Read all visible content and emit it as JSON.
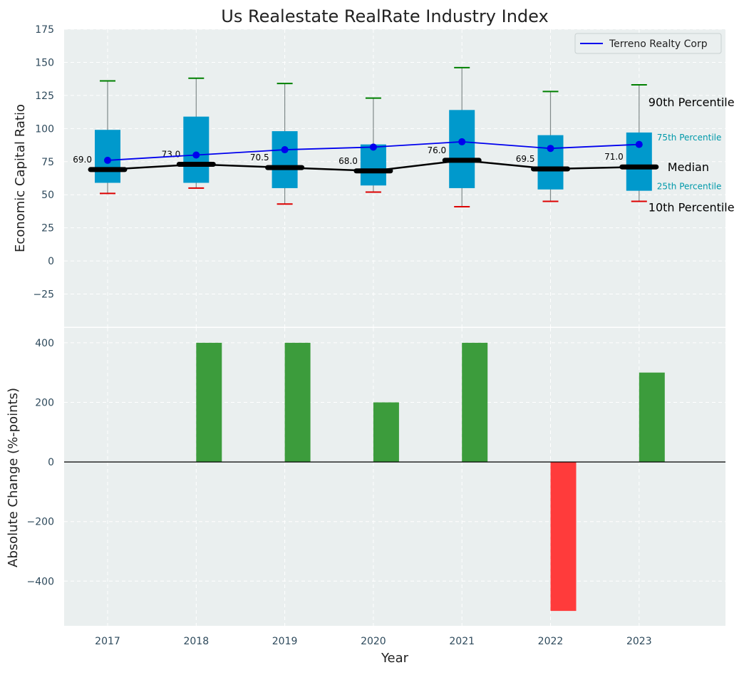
{
  "title": "Us Realestate RealRate Industry Index",
  "colors": {
    "plot_bg": "#EAEFEF",
    "grid": "#FFFFFF",
    "box": "#0099CC",
    "median_line": "#000000",
    "whisker": "#808A8A",
    "p90_cap": "#008000",
    "p10_cap": "#DD0000",
    "company_line": "#0000EE",
    "bar_pos": "#3C9C3C",
    "bar_neg": "#FF3B3B",
    "tick_text": "#2E4A5C",
    "label_text": "#222222",
    "annotation_teal": "#0099AA"
  },
  "chart_data": [
    {
      "type": "box",
      "title": "Us Realestate RealRate Industry Index",
      "xlabel": "",
      "ylabel": "Economic Capital Ratio",
      "ylim": [
        -50,
        175
      ],
      "yticks": [
        -25,
        0,
        25,
        50,
        75,
        100,
        125,
        150,
        175
      ],
      "grid": true,
      "categories": [
        "2017",
        "2018",
        "2019",
        "2020",
        "2021",
        "2022",
        "2023"
      ],
      "p10": [
        51,
        55,
        43,
        52,
        41,
        45,
        45
      ],
      "p25": [
        59,
        59,
        55,
        57,
        55,
        54,
        53
      ],
      "median": [
        69.0,
        73.0,
        70.5,
        68.0,
        76.0,
        69.5,
        71.0
      ],
      "median_labels": [
        "69.0",
        "73.0",
        "70.5",
        "68.0",
        "76.0",
        "69.5",
        "71.0"
      ],
      "p75": [
        99,
        109,
        98,
        88,
        114,
        95,
        97
      ],
      "p90": [
        136,
        138,
        134,
        123,
        146,
        128,
        133
      ],
      "series": [
        {
          "name": "Terreno Realty Corp",
          "values": [
            76,
            80,
            84,
            86,
            90,
            85,
            88
          ]
        }
      ],
      "legend": {
        "position": "top-right",
        "entries": [
          "Terreno Realty Corp"
        ]
      },
      "annotations": {
        "p90": "90th Percentile",
        "p75": "75th Percentile",
        "median": "Median",
        "p25": "25th Percentile",
        "p10": "10th Percentile"
      }
    },
    {
      "type": "bar",
      "xlabel": "Year",
      "ylabel": "Absolute Change (%-points)",
      "ylim": [
        -550,
        450
      ],
      "yticks": [
        -400,
        -200,
        0,
        200,
        400
      ],
      "grid": true,
      "categories": [
        "2017",
        "2018",
        "2019",
        "2020",
        "2021",
        "2022",
        "2023"
      ],
      "values": [
        0,
        400,
        400,
        200,
        400,
        -500,
        300
      ]
    }
  ]
}
